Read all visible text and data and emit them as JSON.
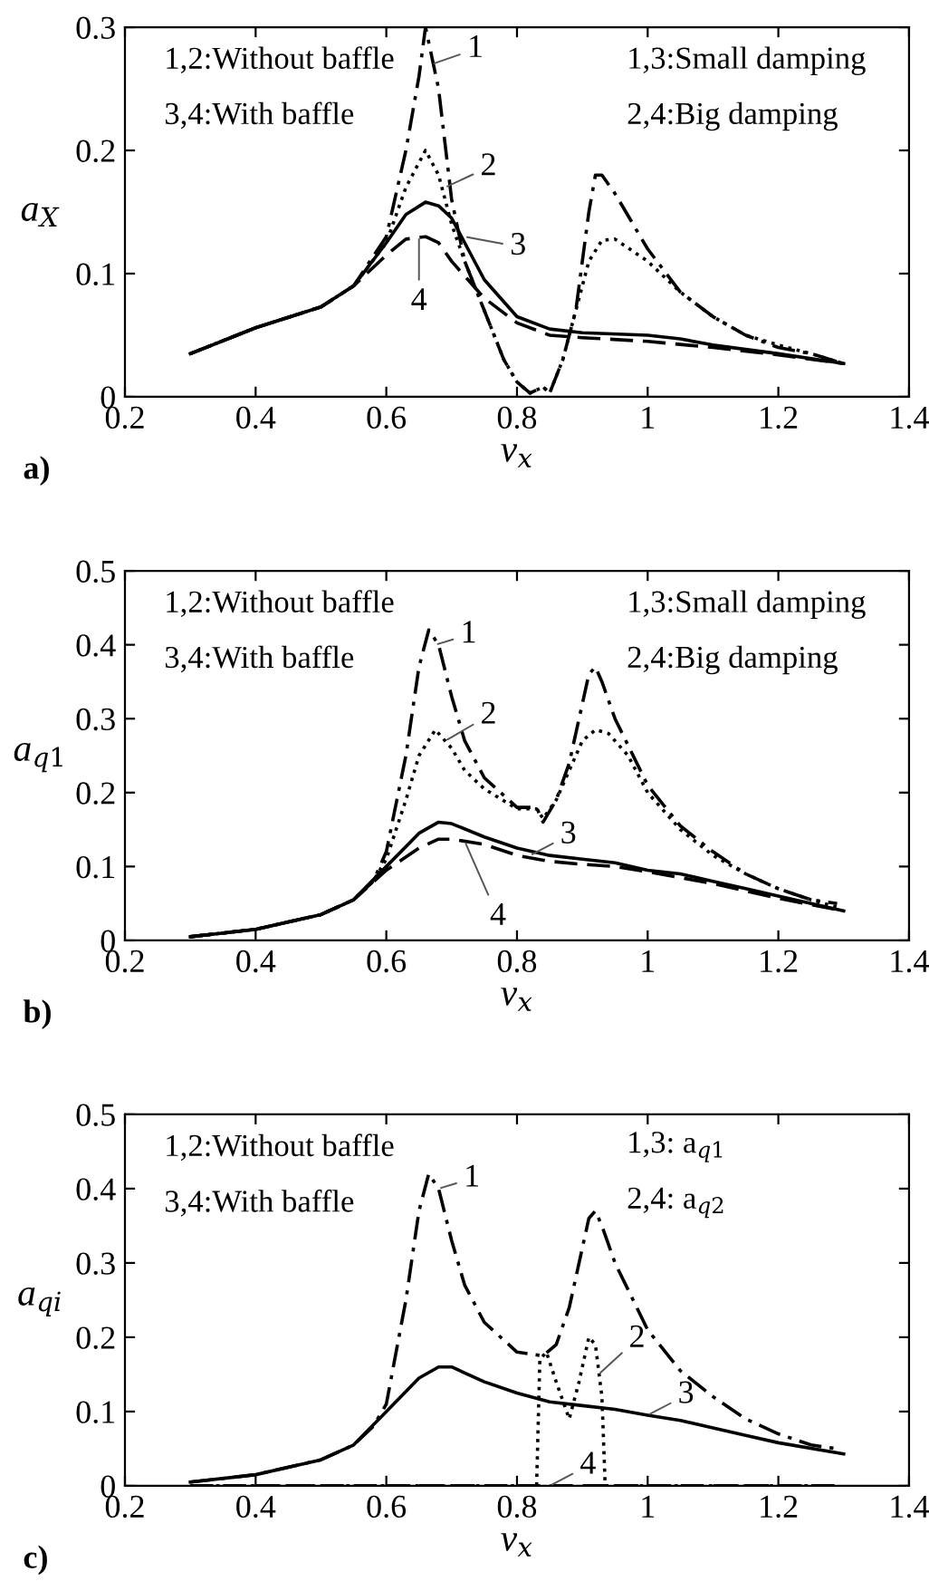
{
  "chart_data": [
    {
      "type": "line",
      "xlabel": "ν$_{x}$",
      "ylabel": "a$_{X}$",
      "xlim": [
        0.2,
        1.4
      ],
      "ylim": [
        0,
        0.3
      ],
      "xticks": [
        0.2,
        0.4,
        0.6,
        0.8,
        1,
        1.2,
        1.4
      ],
      "yticks": [
        0,
        0.1,
        0.2,
        0.3
      ],
      "grid": false,
      "legend": false,
      "annotations": [
        "1,2:Without baffle",
        "3,4:With baffle",
        "1,3:Small damping",
        "2,4:Big damping",
        "a)",
        {
          "text": "1",
          "x": 0.67,
          "y": 0.27
        },
        {
          "text": "2",
          "x": 0.69,
          "y": 0.17
        },
        {
          "text": "3",
          "x": 0.72,
          "y": 0.13
        },
        {
          "text": "4",
          "x": 0.65,
          "y": 0.13
        }
      ],
      "series": [
        {
          "color": "#000000",
          "line_style": "dashdot",
          "x": [
            0.3,
            0.4,
            0.5,
            0.55,
            0.6,
            0.63,
            0.65,
            0.66,
            0.68,
            0.7,
            0.72,
            0.75,
            0.78,
            0.8,
            0.82,
            0.84,
            0.85,
            0.87,
            0.89,
            0.91,
            0.92,
            0.93,
            0.95,
            1.0,
            1.05,
            1.1,
            1.15,
            1.2,
            1.25,
            1.3
          ],
          "values": [
            0.035,
            0.056,
            0.073,
            0.09,
            0.13,
            0.2,
            0.26,
            0.3,
            0.25,
            0.16,
            0.11,
            0.07,
            0.03,
            0.012,
            0.003,
            0.008,
            0.003,
            0.03,
            0.07,
            0.15,
            0.18,
            0.18,
            0.165,
            0.12,
            0.085,
            0.065,
            0.05,
            0.04,
            0.035,
            0.027
          ]
        },
        {
          "color": "#000000",
          "line_style": "dotted",
          "x": [
            0.3,
            0.4,
            0.5,
            0.55,
            0.6,
            0.63,
            0.66,
            0.68,
            0.7,
            0.72,
            0.75,
            0.78,
            0.8,
            0.82,
            0.84,
            0.85,
            0.87,
            0.89,
            0.91,
            0.93,
            0.95,
            1.0,
            1.05,
            1.1,
            1.15,
            1.2,
            1.25,
            1.3
          ],
          "values": [
            0.035,
            0.056,
            0.073,
            0.09,
            0.125,
            0.17,
            0.2,
            0.18,
            0.14,
            0.11,
            0.07,
            0.03,
            0.012,
            0.003,
            0.008,
            0.003,
            0.03,
            0.07,
            0.11,
            0.127,
            0.128,
            0.11,
            0.085,
            0.065,
            0.05,
            0.042,
            0.035,
            0.027
          ]
        },
        {
          "color": "#000000",
          "line_style": "solid",
          "x": [
            0.3,
            0.4,
            0.5,
            0.55,
            0.6,
            0.63,
            0.66,
            0.68,
            0.7,
            0.72,
            0.75,
            0.8,
            0.85,
            0.9,
            1.0,
            1.05,
            1.1,
            1.2,
            1.3
          ],
          "values": [
            0.035,
            0.056,
            0.073,
            0.09,
            0.125,
            0.148,
            0.158,
            0.155,
            0.145,
            0.125,
            0.095,
            0.065,
            0.055,
            0.052,
            0.05,
            0.047,
            0.042,
            0.035,
            0.027
          ]
        },
        {
          "color": "#000000",
          "line_style": "dashed",
          "x": [
            0.3,
            0.4,
            0.5,
            0.55,
            0.6,
            0.63,
            0.66,
            0.68,
            0.7,
            0.75,
            0.8,
            0.85,
            0.9,
            1.0,
            1.1,
            1.2,
            1.3
          ],
          "values": [
            0.035,
            0.056,
            0.073,
            0.09,
            0.115,
            0.128,
            0.13,
            0.125,
            0.11,
            0.08,
            0.06,
            0.05,
            0.048,
            0.045,
            0.04,
            0.034,
            0.027
          ]
        }
      ]
    },
    {
      "type": "line",
      "xlabel": "ν$_{x}$",
      "ylabel": "a$_{q1}$",
      "xlim": [
        0.2,
        1.4
      ],
      "ylim": [
        0,
        0.5
      ],
      "xticks": [
        0.2,
        0.4,
        0.6,
        0.8,
        1,
        1.2,
        1.4
      ],
      "yticks": [
        0,
        0.1,
        0.2,
        0.3,
        0.4,
        0.5
      ],
      "grid": false,
      "legend": false,
      "annotations": [
        "1,2:Without baffle",
        "3,4:With baffle",
        "1,3:Small damping",
        "2,4:Big damping",
        "b)",
        {
          "text": "1",
          "x": 0.675,
          "y": 0.4
        },
        {
          "text": "2",
          "x": 0.69,
          "y": 0.27
        },
        {
          "text": "3",
          "x": 0.82,
          "y": 0.115
        },
        {
          "text": "4",
          "x": 0.72,
          "y": 0.134
        }
      ],
      "series": [
        {
          "color": "#000000",
          "line_style": "dashdot",
          "x": [
            0.3,
            0.4,
            0.5,
            0.55,
            0.58,
            0.6,
            0.63,
            0.65,
            0.665,
            0.68,
            0.7,
            0.72,
            0.75,
            0.8,
            0.83,
            0.84,
            0.86,
            0.88,
            0.9,
            0.91,
            0.92,
            0.93,
            0.95,
            1.0,
            1.05,
            1.1,
            1.15,
            1.2,
            1.25,
            1.29
          ],
          "values": [
            0.005,
            0.015,
            0.035,
            0.055,
            0.08,
            0.12,
            0.25,
            0.37,
            0.42,
            0.4,
            0.33,
            0.27,
            0.22,
            0.18,
            0.18,
            0.16,
            0.19,
            0.24,
            0.32,
            0.36,
            0.37,
            0.35,
            0.3,
            0.21,
            0.155,
            0.12,
            0.09,
            0.07,
            0.055,
            0.05
          ]
        },
        {
          "color": "#000000",
          "line_style": "dotted",
          "x": [
            0.3,
            0.4,
            0.5,
            0.55,
            0.58,
            0.6,
            0.63,
            0.65,
            0.675,
            0.7,
            0.72,
            0.75,
            0.8,
            0.83,
            0.84,
            0.86,
            0.88,
            0.9,
            0.92,
            0.94,
            0.97,
            1.0,
            1.05,
            1.1,
            1.15,
            1.2,
            1.25,
            1.29
          ],
          "values": [
            0.005,
            0.015,
            0.035,
            0.055,
            0.08,
            0.11,
            0.19,
            0.25,
            0.285,
            0.26,
            0.23,
            0.205,
            0.178,
            0.178,
            0.165,
            0.19,
            0.23,
            0.27,
            0.285,
            0.28,
            0.25,
            0.2,
            0.15,
            0.115,
            0.09,
            0.07,
            0.055,
            0.045
          ]
        },
        {
          "color": "#000000",
          "line_style": "solid",
          "x": [
            0.3,
            0.4,
            0.5,
            0.55,
            0.6,
            0.65,
            0.68,
            0.7,
            0.75,
            0.8,
            0.85,
            0.9,
            0.95,
            1.0,
            1.05,
            1.1,
            1.15,
            1.2,
            1.3
          ],
          "values": [
            0.005,
            0.015,
            0.035,
            0.055,
            0.1,
            0.145,
            0.16,
            0.158,
            0.14,
            0.125,
            0.115,
            0.11,
            0.105,
            0.095,
            0.09,
            0.08,
            0.07,
            0.06,
            0.04
          ]
        },
        {
          "color": "#000000",
          "line_style": "dashed",
          "x": [
            0.3,
            0.4,
            0.5,
            0.55,
            0.6,
            0.65,
            0.68,
            0.7,
            0.75,
            0.8,
            0.85,
            0.9,
            0.95,
            1.0,
            1.05,
            1.1,
            1.15,
            1.2,
            1.3
          ],
          "values": [
            0.005,
            0.015,
            0.035,
            0.055,
            0.095,
            0.125,
            0.137,
            0.137,
            0.13,
            0.115,
            0.107,
            0.103,
            0.1,
            0.093,
            0.085,
            0.077,
            0.067,
            0.057,
            0.04
          ]
        }
      ]
    },
    {
      "type": "line",
      "xlabel": "ν$_{x}$",
      "ylabel": "a$_{qi}$",
      "xlim": [
        0.2,
        1.4
      ],
      "ylim": [
        0,
        0.5
      ],
      "xticks": [
        0.2,
        0.4,
        0.6,
        0.8,
        1,
        1.2,
        1.4
      ],
      "yticks": [
        0,
        0.1,
        0.2,
        0.3,
        0.4,
        0.5
      ],
      "grid": false,
      "legend": false,
      "annotations": [
        "1,2:Without baffle",
        "3,4:With baffle",
        "1,3: a$_{q1}$",
        "2,4: a$_{q2}$",
        "c)",
        {
          "text": "1",
          "x": 0.68,
          "y": 0.4
        },
        {
          "text": "2",
          "x": 0.925,
          "y": 0.15
        },
        {
          "text": "3",
          "x": 1.0,
          "y": 0.095
        },
        {
          "text": "4",
          "x": 0.85,
          "y": 0.0
        }
      ],
      "series": [
        {
          "color": "#000000",
          "line_style": "dashdot",
          "x": [
            0.3,
            0.4,
            0.5,
            0.55,
            0.58,
            0.6,
            0.63,
            0.65,
            0.665,
            0.68,
            0.7,
            0.72,
            0.75,
            0.8,
            0.84,
            0.86,
            0.88,
            0.9,
            0.91,
            0.92,
            0.93,
            0.95,
            1.0,
            1.05,
            1.1,
            1.15,
            1.2,
            1.25,
            1.29
          ],
          "values": [
            0.005,
            0.015,
            0.035,
            0.055,
            0.08,
            0.11,
            0.25,
            0.37,
            0.42,
            0.4,
            0.33,
            0.27,
            0.22,
            0.18,
            0.175,
            0.19,
            0.24,
            0.32,
            0.36,
            0.37,
            0.35,
            0.3,
            0.21,
            0.155,
            0.12,
            0.09,
            0.07,
            0.055,
            0.05
          ]
        },
        {
          "color": "#000000",
          "line_style": "dotted",
          "x": [
            0.3,
            0.83,
            0.835,
            0.845,
            0.86,
            0.88,
            0.895,
            0.91,
            0.92,
            0.93,
            0.935,
            1.29
          ],
          "values": [
            0,
            0,
            0.17,
            0.18,
            0.14,
            0.09,
            0.14,
            0.2,
            0.19,
            0.12,
            0,
            0
          ]
        },
        {
          "color": "#000000",
          "line_style": "solid",
          "x": [
            0.3,
            0.4,
            0.5,
            0.55,
            0.6,
            0.65,
            0.68,
            0.7,
            0.75,
            0.8,
            0.85,
            0.9,
            0.95,
            1.0,
            1.05,
            1.1,
            1.15,
            1.2,
            1.3
          ],
          "values": [
            0.005,
            0.015,
            0.035,
            0.055,
            0.1,
            0.145,
            0.16,
            0.16,
            0.14,
            0.125,
            0.113,
            0.108,
            0.103,
            0.095,
            0.088,
            0.078,
            0.068,
            0.058,
            0.043
          ]
        },
        {
          "color": "#000000",
          "line_style": "dashed",
          "x": [
            0.3,
            1.29
          ],
          "values": [
            0,
            0
          ]
        }
      ]
    }
  ]
}
